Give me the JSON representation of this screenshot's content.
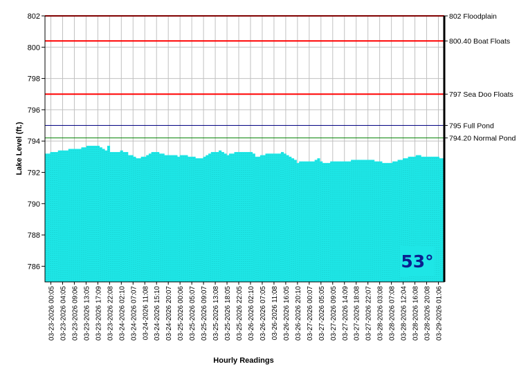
{
  "chart_data": {
    "type": "area",
    "xlabel": "Hourly Readings",
    "ylabel": "Lake Level (ft.)",
    "ylim": [
      785,
      802
    ],
    "yticks": [
      786,
      788,
      790,
      792,
      794,
      796,
      798,
      800,
      802
    ],
    "grid": true,
    "area_color": "#1ee6e6",
    "x_ticks": [
      "03-23-2026 00:05",
      "03-23-2026 04:05",
      "03-23-2026 09:06",
      "03-23-2026 13:05",
      "03-23-2026 17:09",
      "03-23-2026 22:08",
      "03-24-2026 02:10",
      "03-24-2026 07:07",
      "03-24-2026 11:08",
      "03-24-2026 15:10",
      "03-24-2026 20:07",
      "03-25-2026 00:06",
      "03-25-2026 05:07",
      "03-25-2026 09:07",
      "03-25-2026 13:08",
      "03-25-2026 18:05",
      "03-25-2026 22:05",
      "03-26-2026 02:10",
      "03-26-2026 07:05",
      "03-26-2026 11:08",
      "03-26-2026 16:05",
      "03-26-2026 20:10",
      "03-27-2026 00:07",
      "03-27-2026 05:05",
      "03-27-2026 09:05",
      "03-27-2026 14:09",
      "03-27-2026 18:08",
      "03-27-2026 22:07",
      "03-28-2026 03:08",
      "03-28-2026 07:08",
      "03-28-2026 12:04",
      "03-28-2026 16:08",
      "03-28-2026 20:08",
      "03-29-2026 01:06"
    ],
    "values": [
      793.2,
      793.2,
      793.3,
      793.3,
      793.3,
      793.4,
      793.4,
      793.4,
      793.4,
      793.5,
      793.5,
      793.5,
      793.5,
      793.5,
      793.6,
      793.6,
      793.7,
      793.7,
      793.7,
      793.7,
      793.7,
      793.6,
      793.5,
      793.4,
      793.7,
      793.3,
      793.3,
      793.3,
      793.3,
      793.4,
      793.3,
      793.3,
      793.1,
      793.1,
      793.0,
      792.9,
      792.9,
      793.0,
      793.0,
      793.1,
      793.2,
      793.3,
      793.3,
      793.3,
      793.2,
      793.2,
      793.1,
      793.1,
      793.1,
      793.1,
      793.1,
      793.0,
      793.1,
      793.1,
      793.1,
      793.0,
      793.0,
      793.0,
      792.9,
      792.9,
      792.9,
      793.0,
      793.1,
      793.2,
      793.3,
      793.3,
      793.3,
      793.4,
      793.3,
      793.2,
      793.1,
      793.2,
      793.2,
      793.3,
      793.3,
      793.3,
      793.3,
      793.3,
      793.3,
      793.3,
      793.2,
      793.0,
      793.0,
      793.1,
      793.1,
      793.2,
      793.2,
      793.2,
      793.2,
      793.2,
      793.2,
      793.3,
      793.2,
      793.1,
      793.0,
      792.9,
      792.8,
      792.6,
      792.7,
      792.7,
      792.7,
      792.7,
      792.7,
      792.7,
      792.8,
      792.9,
      792.7,
      792.6,
      792.6,
      792.6,
      792.7,
      792.7,
      792.7,
      792.7,
      792.7,
      792.7,
      792.7,
      792.7,
      792.8,
      792.8,
      792.8,
      792.8,
      792.8,
      792.8,
      792.8,
      792.8,
      792.8,
      792.7,
      792.7,
      792.7,
      792.6,
      792.6,
      792.6,
      792.6,
      792.7,
      792.7,
      792.8,
      792.8,
      792.9,
      792.9,
      793.0,
      793.0,
      793.0,
      793.1,
      793.1,
      793.0,
      793.0,
      793.0,
      793.0,
      793.0,
      793.0,
      793.0,
      792.9,
      792.9
    ],
    "reference_lines": [
      {
        "value": 802,
        "label": "802 Floodplain",
        "color": "#ff0000"
      },
      {
        "value": 800.4,
        "label": "800.40 Boat Floats",
        "color": "#ff0000"
      },
      {
        "value": 797,
        "label": "797 Sea Doo Floats",
        "color": "#ff0000"
      },
      {
        "value": 795,
        "label": "795 Full Pond",
        "color": "#000080"
      },
      {
        "value": 794.2,
        "label": "794.20 Normal Pond",
        "color": "#008000"
      }
    ],
    "badge": {
      "text": "53°",
      "color": "#0b1f8f",
      "background": "#1ee6e6"
    }
  }
}
